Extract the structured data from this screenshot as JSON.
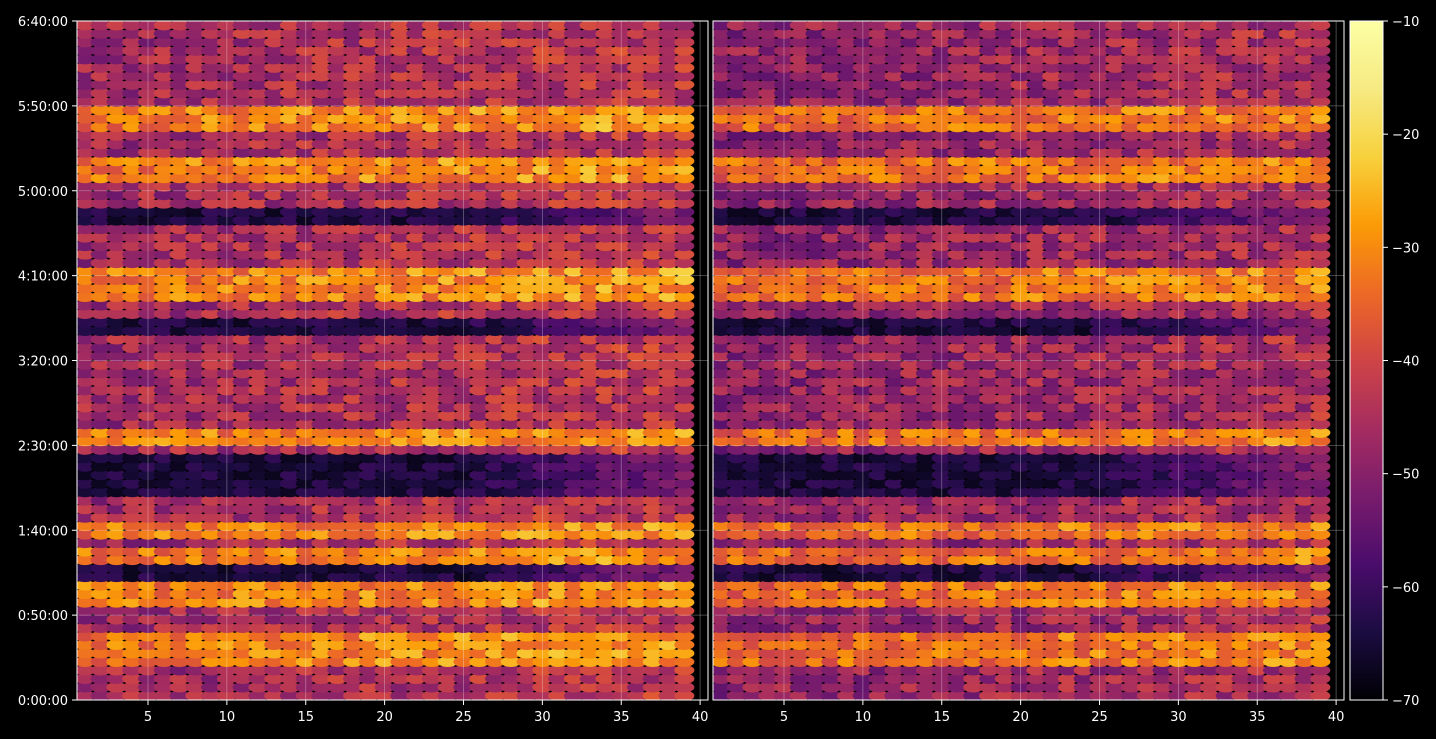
{
  "chart_data": {
    "type": "heatmap",
    "title": "",
    "xlabel": "",
    "ylabel": "",
    "colormap": "inferno",
    "background": "#000000",
    "grid": true,
    "panels": [
      {
        "name": "",
        "xlim": [
          1,
          40
        ],
        "xticks": [
          5,
          10,
          15,
          20,
          25,
          30,
          35,
          40
        ]
      },
      {
        "name": "",
        "xlim": [
          1,
          40
        ],
        "xticks": [
          5,
          10,
          15,
          20,
          25,
          30,
          35,
          40
        ]
      }
    ],
    "ylim_seconds": [
      0,
      24000
    ],
    "yticks": [
      {
        "value": 0,
        "label": "0:00:00"
      },
      {
        "value": 3000,
        "label": "0:50:00"
      },
      {
        "value": 6000,
        "label": "1:40:00"
      },
      {
        "value": 9000,
        "label": "2:30:00"
      },
      {
        "value": 12000,
        "label": "3:20:00"
      },
      {
        "value": 15000,
        "label": "4:10:00"
      },
      {
        "value": 18000,
        "label": "5:00:00"
      },
      {
        "value": 21000,
        "label": "5:50:00"
      },
      {
        "value": 24000,
        "label": "6:40:00"
      }
    ],
    "colorbar": {
      "range": [
        -70,
        -10
      ],
      "ticks": [
        -10,
        -20,
        -30,
        -40,
        -50,
        -60,
        -70
      ],
      "tick_labels": [
        "−10",
        "−20",
        "−30",
        "−40",
        "−50",
        "−60",
        "−70"
      ]
    },
    "rows": {
      "count": 40,
      "columns": 39,
      "note_visible_only": true,
      "bright_rows_seconds": [
        15000,
        14400,
        18600,
        19000,
        20300,
        20600,
        9300,
        6100,
        5000,
        3800,
        3500,
        1500,
        2200
      ],
      "dark_bands_seconds": [
        [
          16800,
          17500
        ],
        [
          7200,
          8700
        ],
        [
          4200,
          4700
        ],
        [
          13000,
          13500
        ]
      ]
    }
  }
}
